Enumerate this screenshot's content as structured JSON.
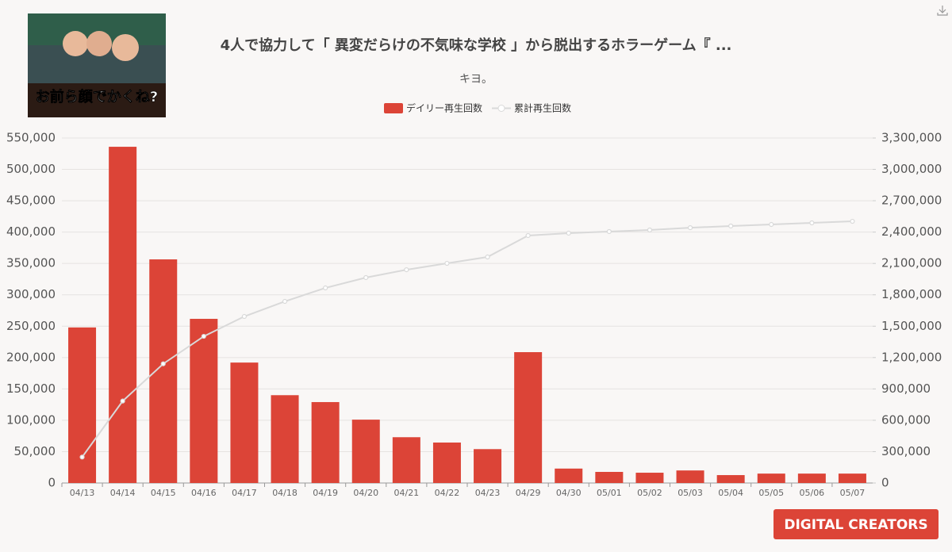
{
  "chart_data": {
    "type": "bar-line",
    "title": "4人で協力して「 異変だらけの不気味な学校 」から脱出するホラーゲーム『 ...",
    "subtitle": "キヨ。",
    "thumbnail_text": "お前ら顔でかくね?",
    "logo": "DIGITAL CREATORS",
    "categories": [
      "04/13",
      "04/14",
      "04/15",
      "04/16",
      "04/17",
      "04/18",
      "04/19",
      "04/20",
      "04/21",
      "04/22",
      "04/23",
      "04/29",
      "04/30",
      "05/01",
      "05/02",
      "05/03",
      "05/04",
      "05/05",
      "05/06",
      "05/07"
    ],
    "series": [
      {
        "name": "デイリー再生回数",
        "color": "#dc4437",
        "type": "bar",
        "values": [
          248000,
          536000,
          356500,
          261700,
          192000,
          140000,
          129000,
          101000,
          73000,
          64500,
          54000,
          208600,
          23000,
          17700,
          16400,
          20000,
          12600,
          15000,
          15000,
          15000
        ]
      },
      {
        "name": "累計再生回数",
        "color": "#d9d9d9",
        "type": "line",
        "axis": "y2",
        "values": [
          248000,
          784000,
          1140000,
          1403000,
          1593000,
          1737000,
          1866000,
          1965000,
          2040000,
          2101000,
          2162000,
          2367000,
          2390000,
          2405000,
          2420000,
          2442000,
          2458000,
          2473000,
          2488000,
          2503000
        ]
      }
    ],
    "ylim": [
      0,
      550000
    ],
    "yticks": [
      0,
      {
        "value": 50000,
        "label": "50,000"
      },
      {
        "value": 100000,
        "label": "100,000"
      },
      {
        "value": 150000,
        "label": "150,000"
      },
      {
        "value": 200000,
        "label": "200,000"
      },
      {
        "value": 250000,
        "label": "250,000"
      },
      {
        "value": 300000,
        "label": "300,000"
      },
      {
        "value": 350000,
        "label": "350,000"
      },
      {
        "value": 400000,
        "label": "400,000"
      },
      {
        "value": 450000,
        "label": "450,000"
      },
      {
        "value": 500000,
        "label": "500,000"
      },
      {
        "value": 550000,
        "label": "550,000"
      }
    ],
    "y2lim": [
      0,
      3300000
    ],
    "y2ticks": [
      0,
      {
        "value": 300000,
        "label": "300,000"
      },
      {
        "value": 600000,
        "label": "600,000"
      },
      {
        "value": 900000,
        "label": "900,000"
      },
      {
        "value": 1200000,
        "label": "1,200,000"
      },
      {
        "value": 1500000,
        "label": "1,500,000"
      },
      {
        "value": 1800000,
        "label": "1,800,000"
      },
      {
        "value": 2100000,
        "label": "2,100,000"
      },
      {
        "value": 2400000,
        "label": "2,400,000"
      },
      {
        "value": 2700000,
        "label": "2,700,000"
      },
      {
        "value": 3000000,
        "label": "3,000,000"
      },
      {
        "value": 3300000,
        "label": "3,300,000"
      }
    ],
    "grid": true
  }
}
